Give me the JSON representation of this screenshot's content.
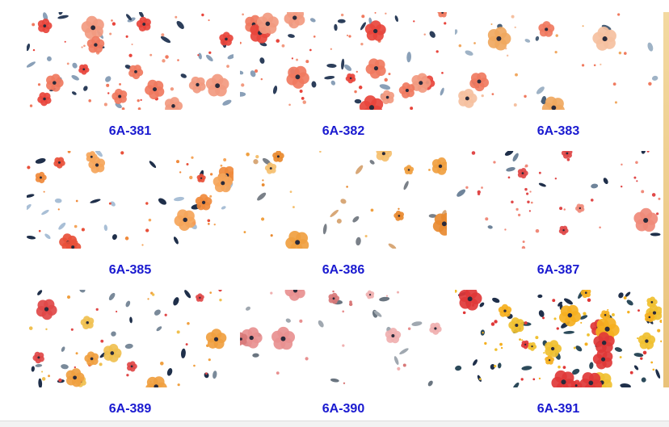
{
  "products": [
    {
      "code": "6A-381"
    },
    {
      "code": "6A-382"
    },
    {
      "code": "6A-383"
    },
    {
      "code": "6A-385"
    },
    {
      "code": "6A-386"
    },
    {
      "code": "6A-387"
    },
    {
      "code": "6A-389"
    },
    {
      "code": "6A-390"
    },
    {
      "code": "6A-391"
    }
  ]
}
